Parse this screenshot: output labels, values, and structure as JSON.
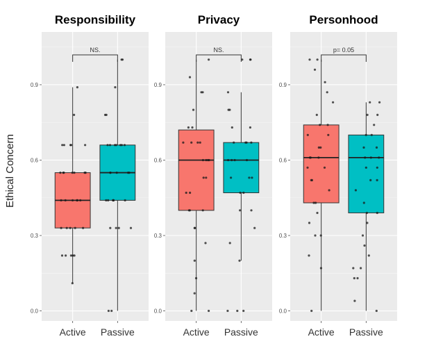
{
  "chart_data": {
    "type": "box",
    "ylabel": "Ethical Concern",
    "ylim": [
      -0.04,
      1.11
    ],
    "yticks": [
      0.0,
      0.3,
      0.6,
      0.9
    ],
    "ytick_labels": [
      "0.0",
      "0.3",
      "0.6",
      "0.9"
    ],
    "categories": [
      "Active",
      "Passive"
    ],
    "colors": {
      "Active": "#F8766D",
      "Passive": "#00BFC4"
    },
    "grid": true,
    "panels": [
      {
        "title": "Responsibility",
        "significance": "NS.",
        "groups": [
          {
            "category": "Active",
            "whisker_low": 0.11,
            "q1": 0.33,
            "median": 0.44,
            "q3": 0.55,
            "whisker_high": 0.89,
            "points": [
              0.11,
              0.22,
              0.22,
              0.22,
              0.22,
              0.22,
              0.33,
              0.33,
              0.33,
              0.33,
              0.33,
              0.44,
              0.44,
              0.44,
              0.44,
              0.44,
              0.44,
              0.55,
              0.55,
              0.55,
              0.55,
              0.55,
              0.55,
              0.55,
              0.66,
              0.66,
              0.66,
              0.66,
              0.66,
              0.78,
              0.89
            ]
          },
          {
            "category": "Passive",
            "whisker_low": 0.0,
            "q1": 0.44,
            "median": 0.55,
            "q3": 0.66,
            "whisker_high": 1.0,
            "points": [
              0.0,
              0.0,
              0.33,
              0.33,
              0.33,
              0.33,
              0.44,
              0.44,
              0.44,
              0.44,
              0.44,
              0.44,
              0.55,
              0.55,
              0.55,
              0.55,
              0.55,
              0.66,
              0.66,
              0.66,
              0.66,
              0.66,
              0.66,
              0.66,
              0.78,
              0.78,
              0.89,
              1.0,
              1.0
            ]
          }
        ]
      },
      {
        "title": "Privacy",
        "significance": "NS.",
        "groups": [
          {
            "category": "Active",
            "whisker_low": 0.0,
            "q1": 0.4,
            "median": 0.6,
            "q3": 0.72,
            "whisker_high": 1.0,
            "points": [
              0.0,
              0.0,
              0.07,
              0.13,
              0.2,
              0.27,
              0.33,
              0.33,
              0.4,
              0.4,
              0.4,
              0.47,
              0.47,
              0.53,
              0.53,
              0.6,
              0.6,
              0.6,
              0.6,
              0.67,
              0.67,
              0.67,
              0.67,
              0.73,
              0.73,
              0.8,
              0.87,
              0.87,
              0.93,
              1.0
            ]
          },
          {
            "category": "Passive",
            "whisker_low": 0.2,
            "q1": 0.47,
            "median": 0.6,
            "q3": 0.67,
            "whisker_high": 0.87,
            "points": [
              0.0,
              0.0,
              0.0,
              0.2,
              0.27,
              0.33,
              0.4,
              0.4,
              0.47,
              0.47,
              0.53,
              0.53,
              0.53,
              0.6,
              0.6,
              0.6,
              0.6,
              0.67,
              0.67,
              0.67,
              0.67,
              0.73,
              0.73,
              0.8,
              0.8,
              0.87,
              1.0,
              1.0,
              1.0
            ]
          }
        ]
      },
      {
        "title": "Personhood",
        "significance": "p= 0.05",
        "groups": [
          {
            "category": "Active",
            "whisker_low": 0.0,
            "q1": 0.43,
            "median": 0.61,
            "q3": 0.74,
            "whisker_high": 1.0,
            "points": [
              0.0,
              0.17,
              0.22,
              0.3,
              0.3,
              0.35,
              0.39,
              0.43,
              0.43,
              0.48,
              0.52,
              0.52,
              0.57,
              0.57,
              0.61,
              0.61,
              0.61,
              0.65,
              0.65,
              0.7,
              0.7,
              0.74,
              0.74,
              0.78,
              0.83,
              0.87,
              0.91,
              0.96,
              1.0,
              1.0
            ]
          },
          {
            "category": "Passive",
            "whisker_low": 0.0,
            "q1": 0.39,
            "median": 0.61,
            "q3": 0.7,
            "whisker_high": 0.83,
            "points": [
              0.0,
              0.04,
              0.13,
              0.13,
              0.17,
              0.17,
              0.22,
              0.26,
              0.3,
              0.35,
              0.39,
              0.39,
              0.43,
              0.48,
              0.52,
              0.52,
              0.57,
              0.57,
              0.61,
              0.61,
              0.61,
              0.65,
              0.65,
              0.7,
              0.7,
              0.74,
              0.78,
              0.78,
              0.83,
              0.83
            ]
          }
        ]
      }
    ]
  }
}
